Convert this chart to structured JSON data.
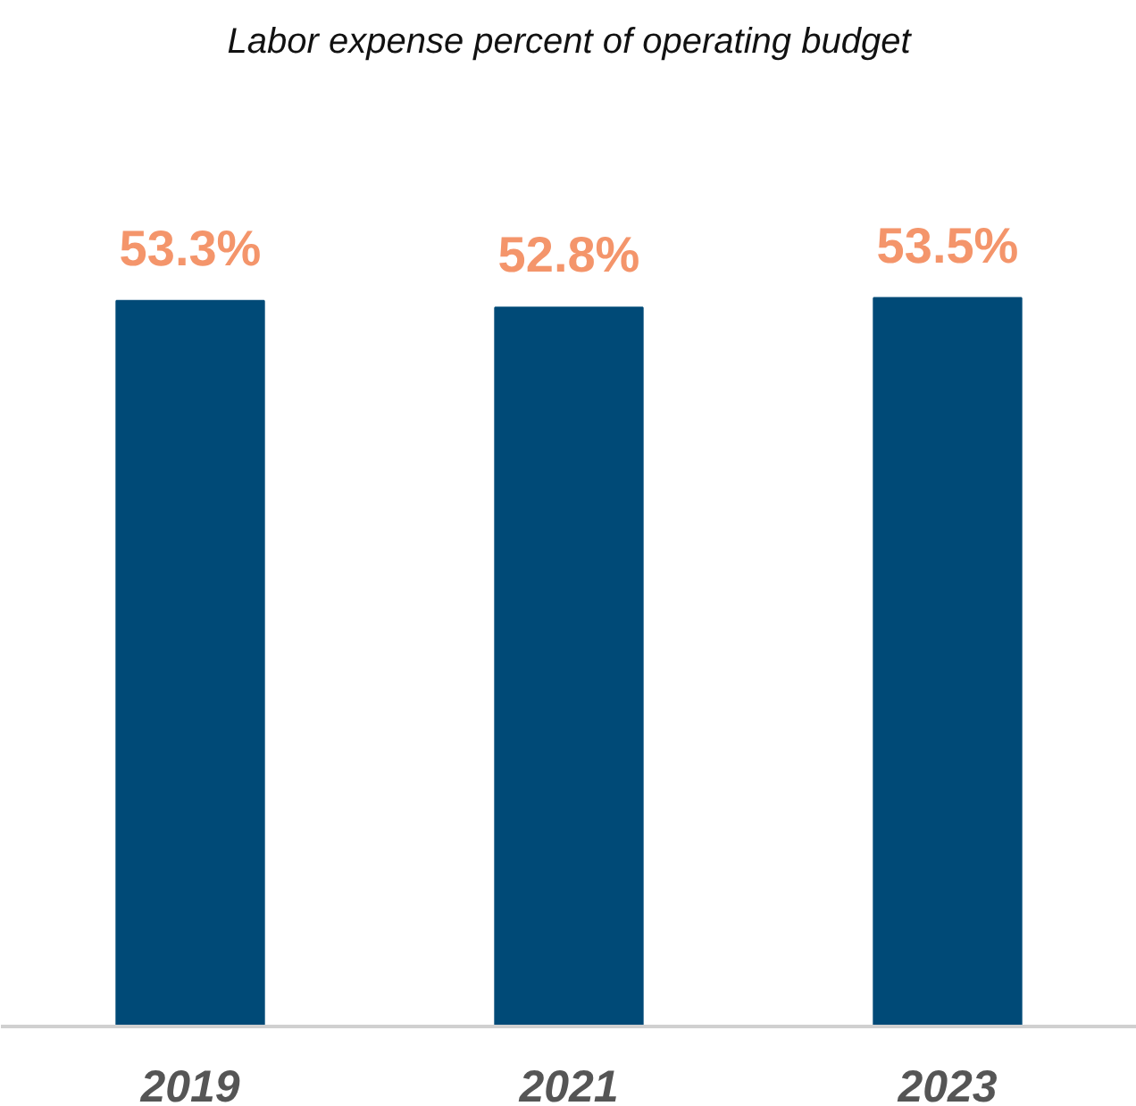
{
  "chart_data": {
    "type": "bar",
    "title": "Labor expense percent of operating budget",
    "categories": [
      "2019",
      "2021",
      "2023"
    ],
    "values": [
      53.3,
      52.8,
      53.5
    ],
    "value_labels": [
      "53.3%",
      "52.8%",
      "53.5%"
    ],
    "color": "#004a77",
    "tick_labels": "x",
    "grid": false
  }
}
